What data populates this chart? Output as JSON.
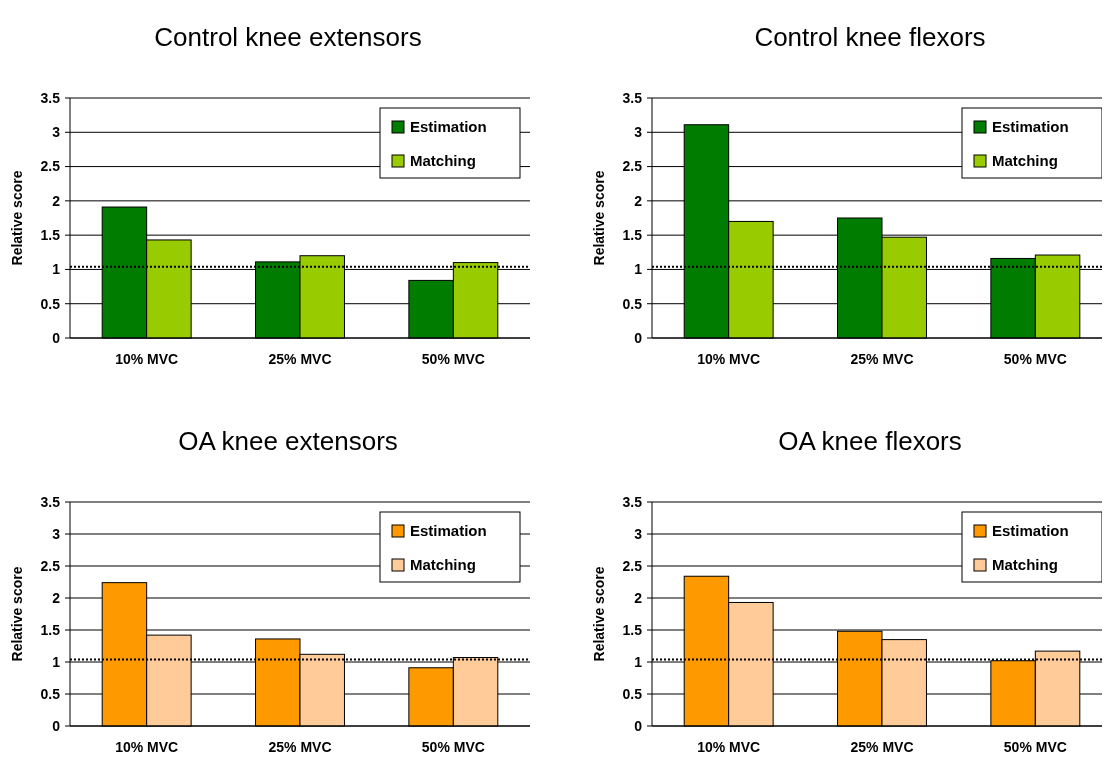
{
  "chart_data": [
    {
      "type": "bar",
      "title": "Control knee extensors",
      "ylabel": "Relative score",
      "categories": [
        "10% MVC",
        "25% MVC",
        "50% MVC"
      ],
      "series": [
        {
          "name": "Estimation",
          "color": "#007d00",
          "values": [
            1.91,
            1.11,
            0.84
          ]
        },
        {
          "name": "Matching",
          "color": "#99cc00",
          "values": [
            1.43,
            1.2,
            1.1
          ]
        }
      ],
      "ylim": [
        0,
        3.5
      ],
      "yticks": [
        0,
        0.5,
        1,
        1.5,
        2,
        2.5,
        3,
        3.5
      ],
      "grid": "y",
      "legend": "top right",
      "ref_lines": [
        {
          "axis": "y",
          "value": 1.04,
          "line_style": "dotted"
        }
      ]
    },
    {
      "type": "bar",
      "title": "Control knee flexors",
      "ylabel": "Relative score",
      "categories": [
        "10% MVC",
        "25% MVC",
        "50% MVC"
      ],
      "series": [
        {
          "name": "Estimation",
          "color": "#007d00",
          "values": [
            3.11,
            1.75,
            1.16
          ]
        },
        {
          "name": "Matching",
          "color": "#99cc00",
          "values": [
            1.7,
            1.47,
            1.21
          ]
        }
      ],
      "ylim": [
        0,
        3.5
      ],
      "yticks": [
        0,
        0.5,
        1,
        1.5,
        2,
        2.5,
        3,
        3.5
      ],
      "grid": "y",
      "legend": "top right",
      "ref_lines": [
        {
          "axis": "y",
          "value": 1.04,
          "line_style": "dotted"
        }
      ]
    },
    {
      "type": "bar",
      "title": "OA knee extensors",
      "ylabel": "Relative score",
      "categories": [
        "10% MVC",
        "25% MVC",
        "50% MVC"
      ],
      "series": [
        {
          "name": "Estimation",
          "color": "#ff9900",
          "values": [
            2.24,
            1.36,
            0.91
          ]
        },
        {
          "name": "Matching",
          "color": "#ffcc99",
          "values": [
            1.42,
            1.12,
            1.07
          ]
        }
      ],
      "ylim": [
        0,
        3.5
      ],
      "yticks": [
        0,
        0.5,
        1,
        1.5,
        2,
        2.5,
        3,
        3.5
      ],
      "grid": "y",
      "legend": "top right",
      "ref_lines": [
        {
          "axis": "y",
          "value": 1.04,
          "line_style": "dotted"
        }
      ]
    },
    {
      "type": "bar",
      "title": "OA knee flexors",
      "ylabel": "Relative score",
      "categories": [
        "10% MVC",
        "25% MVC",
        "50% MVC"
      ],
      "series": [
        {
          "name": "Estimation",
          "color": "#ff9900",
          "values": [
            2.34,
            1.48,
            1.02
          ]
        },
        {
          "name": "Matching",
          "color": "#ffcc99",
          "values": [
            1.93,
            1.35,
            1.17
          ]
        }
      ],
      "ylim": [
        0,
        3.5
      ],
      "yticks": [
        0,
        0.5,
        1,
        1.5,
        2,
        2.5,
        3,
        3.5
      ],
      "grid": "y",
      "legend": "top right",
      "ref_lines": [
        {
          "axis": "y",
          "value": 1.04,
          "line_style": "dotted"
        }
      ]
    }
  ]
}
